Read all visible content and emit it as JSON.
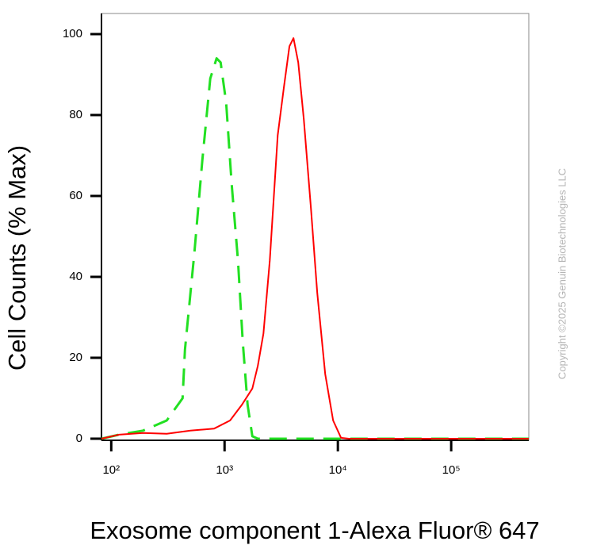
{
  "chart_data": {
    "type": "line",
    "ylabel": "Cell Counts (% Max)",
    "xlabel": "Exosome component 1-Alexa Fluor® 647",
    "watermark": "Copyright ©2025 Genuin Biotechnologies LLC",
    "xscale": "log",
    "xlim": [
      82,
      484000
    ],
    "ylim": [
      -0.4,
      105.1
    ],
    "xticks": [
      {
        "value": 100,
        "label": "10²"
      },
      {
        "value": 1000,
        "label": "10³"
      },
      {
        "value": 10000,
        "label": "10⁴"
      },
      {
        "value": 100000,
        "label": "10⁵"
      }
    ],
    "yticks": [
      0,
      20,
      40,
      60,
      80,
      100
    ],
    "series": [
      {
        "color": "#22e022",
        "dash": true,
        "x": [
          82,
          117,
          191,
          309,
          426,
          447,
          542,
          637,
          748,
          851,
          923,
          1033,
          1156,
          1315,
          1448,
          1596,
          1758,
          1966,
          484000
        ],
        "values": [
          0,
          1,
          2,
          4.5,
          10,
          22,
          46,
          69,
          89,
          94,
          93,
          83,
          63,
          44,
          24,
          8.4,
          0.6,
          0,
          0
        ]
      },
      {
        "color": "#ff0000",
        "dash": false,
        "x": [
          82,
          117,
          191,
          309,
          500,
          811,
          1119,
          1424,
          1758,
          1966,
          2203,
          2506,
          2944,
          3344,
          3741,
          4057,
          4467,
          5000,
          5780,
          6577,
          7730,
          9085,
          10670,
          12530,
          484000
        ],
        "values": [
          0,
          1,
          1.4,
          1.2,
          2,
          2.5,
          4.5,
          8.4,
          12.4,
          18,
          26,
          44,
          75,
          87,
          97,
          99,
          93,
          79,
          57,
          36,
          16,
          4.5,
          0.2,
          0,
          0
        ]
      }
    ]
  }
}
